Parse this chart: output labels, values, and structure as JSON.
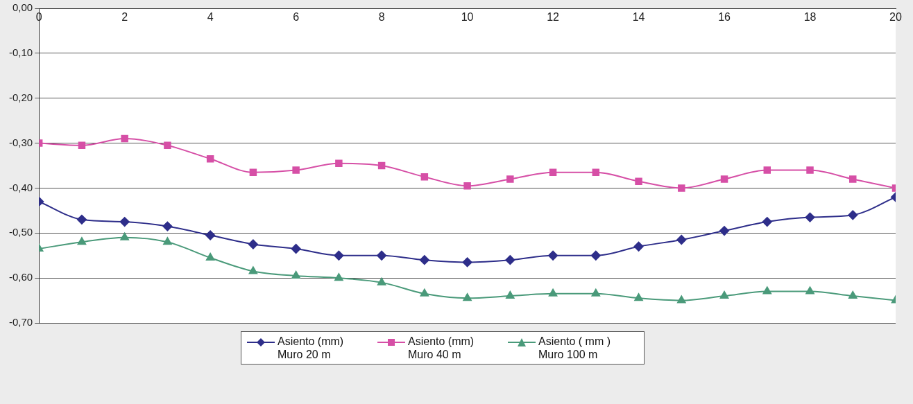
{
  "chart_data": {
    "type": "line",
    "x": [
      0,
      1,
      2,
      3,
      4,
      5,
      6,
      7,
      8,
      9,
      10,
      11,
      12,
      13,
      14,
      15,
      16,
      17,
      18,
      19,
      20
    ],
    "xlim": [
      0,
      20
    ],
    "xticks": [
      0,
      2,
      4,
      6,
      8,
      10,
      12,
      14,
      16,
      18,
      20
    ],
    "ylim": [
      -0.7,
      0
    ],
    "yticks": [
      {
        "value": 0,
        "label": "0,00"
      },
      {
        "value": -0.1,
        "label": "-0,10"
      },
      {
        "value": -0.2,
        "label": "-0,20"
      },
      {
        "value": -0.3,
        "label": "-0,30"
      },
      {
        "value": -0.4,
        "label": "-0,40"
      },
      {
        "value": -0.5,
        "label": "-0,50"
      },
      {
        "value": -0.6,
        "label": "-0,60"
      },
      {
        "value": -0.7,
        "label": "-0,70"
      }
    ],
    "grid": "y",
    "legend": "bottom",
    "series": [
      {
        "name": "Asiento (mm) Muro 20 m",
        "color": "#2e2e8a",
        "marker": "diamond",
        "values": [
          -0.43,
          -0.47,
          -0.475,
          -0.485,
          -0.505,
          -0.525,
          -0.535,
          -0.55,
          -0.55,
          -0.56,
          -0.565,
          -0.56,
          -0.55,
          -0.55,
          -0.53,
          -0.515,
          -0.495,
          -0.475,
          -0.465,
          -0.46,
          -0.42
        ]
      },
      {
        "name": "Asiento (mm) Muro 40 m",
        "color": "#d64fa6",
        "marker": "square",
        "values": [
          -0.3,
          -0.305,
          -0.29,
          -0.305,
          -0.335,
          -0.365,
          -0.36,
          -0.345,
          -0.35,
          -0.375,
          -0.395,
          -0.38,
          -0.365,
          -0.365,
          -0.385,
          -0.4,
          -0.38,
          -0.36,
          -0.36,
          -0.38,
          -0.4
        ]
      },
      {
        "name": "Asiento ( mm ) Muro 100 m",
        "color": "#4a9a7a",
        "marker": "triangle",
        "values": [
          -0.535,
          -0.52,
          -0.51,
          -0.52,
          -0.555,
          -0.585,
          -0.595,
          -0.6,
          -0.61,
          -0.635,
          -0.645,
          -0.64,
          -0.635,
          -0.635,
          -0.645,
          -0.65,
          -0.64,
          -0.63,
          -0.63,
          -0.64,
          -0.65
        ]
      }
    ]
  }
}
